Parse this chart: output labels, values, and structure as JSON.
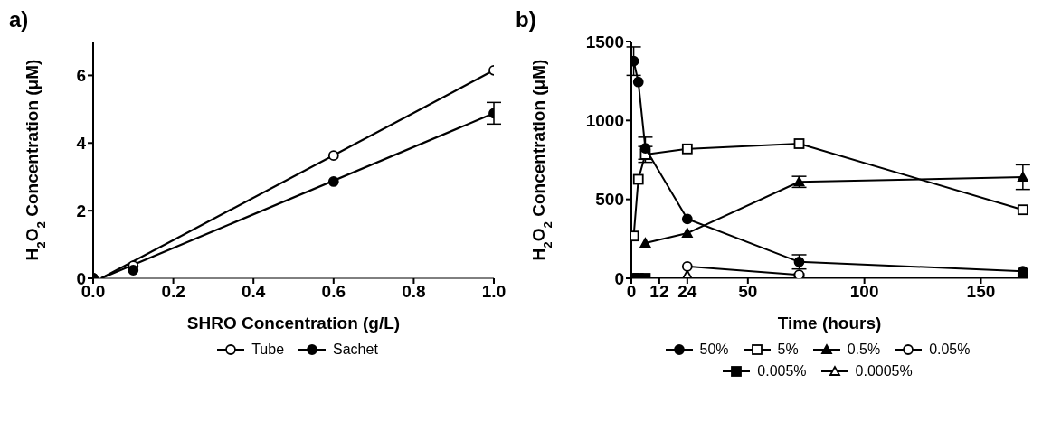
{
  "chart_data": [
    {
      "type": "scatter",
      "title": "a)",
      "xlabel": "SHRO Concentration (g/L)",
      "ylabel": "H$_{2}$O$_{2}$ Concentration (μM)",
      "xlim": [
        0,
        1
      ],
      "xticks": [
        {
          "value": 0,
          "label": "0.0"
        },
        {
          "value": 0.2,
          "label": "0.2"
        },
        {
          "value": 0.4,
          "label": "0.4"
        },
        {
          "value": 0.6,
          "label": "0.6"
        },
        {
          "value": 0.8,
          "label": "0.8"
        },
        {
          "value": 1,
          "label": "1.0"
        }
      ],
      "ylim": [
        0,
        7
      ],
      "yticks": [
        0,
        2,
        4,
        6
      ],
      "grid": false,
      "legend": "bottom",
      "series": [
        {
          "name": "Tube",
          "color": "#000000",
          "marker": "circle-open",
          "x": [
            0,
            0.1,
            0.6,
            1.0
          ],
          "values": [
            0,
            0.37,
            3.63,
            6.15
          ]
        },
        {
          "name": "Sachet",
          "color": "#000000",
          "marker": "circle",
          "x": [
            0,
            0.1,
            0.6,
            1.0
          ],
          "values": [
            0,
            0.24,
            2.86,
            4.88
          ],
          "errors": [
            null,
            null,
            null,
            0.32
          ]
        },
        {
          "type": "line",
          "color": "#000000",
          "marker": "none",
          "x": [
            0.02,
            1.0
          ],
          "values": [
            0,
            6.15
          ]
        },
        {
          "type": "line",
          "color": "#000000",
          "marker": "none",
          "x": [
            0.02,
            1.0
          ],
          "values": [
            0,
            4.88
          ]
        }
      ]
    },
    {
      "type": "line",
      "title": "b)",
      "xlabel": "Time (hours)",
      "ylabel": "H$_{2}$O$_{2}$ Concentration (μM)",
      "xlim": [
        0,
        170
      ],
      "xticks": [
        0,
        12,
        24,
        50,
        100,
        150
      ],
      "ylim": [
        0,
        1500
      ],
      "yticks": [
        0,
        500,
        1000,
        1500
      ],
      "grid": false,
      "legend": "bottom",
      "series": [
        {
          "name": "50%",
          "color": "#000000",
          "marker": "circle",
          "x": [
            1,
            3,
            6,
            24,
            72,
            168
          ],
          "values": [
            1376,
            1244,
            824,
            376,
            104,
            45
          ],
          "errors": [
            90,
            null,
            70,
            null,
            45,
            null
          ]
        },
        {
          "name": "5%",
          "color": "#000000",
          "marker": "square-open",
          "x": [
            1,
            3,
            6,
            24,
            72,
            168
          ],
          "values": [
            268,
            627,
            785,
            820,
            853,
            434
          ],
          "errors": [
            null,
            null,
            50,
            null,
            null,
            null
          ]
        },
        {
          "name": "0.5%",
          "color": "#000000",
          "marker": "triangle",
          "x": [
            6,
            24,
            72,
            168
          ],
          "values": [
            223,
            286,
            611,
            641
          ],
          "errors": [
            null,
            null,
            35,
            78
          ]
        },
        {
          "name": "0.05%",
          "color": "#000000",
          "marker": "circle-open",
          "x": [
            24,
            72
          ],
          "values": [
            75,
            22
          ]
        },
        {
          "name": "0.005%",
          "color": "#000000",
          "marker": "square",
          "x": [
            1,
            3,
            6,
            72,
            168
          ],
          "values": [
            0,
            0,
            0,
            0,
            0
          ]
        },
        {
          "name": "0.0005%",
          "color": "#000000",
          "marker": "triangle-open",
          "x": [
            24
          ],
          "values": [
            20
          ]
        }
      ]
    }
  ]
}
